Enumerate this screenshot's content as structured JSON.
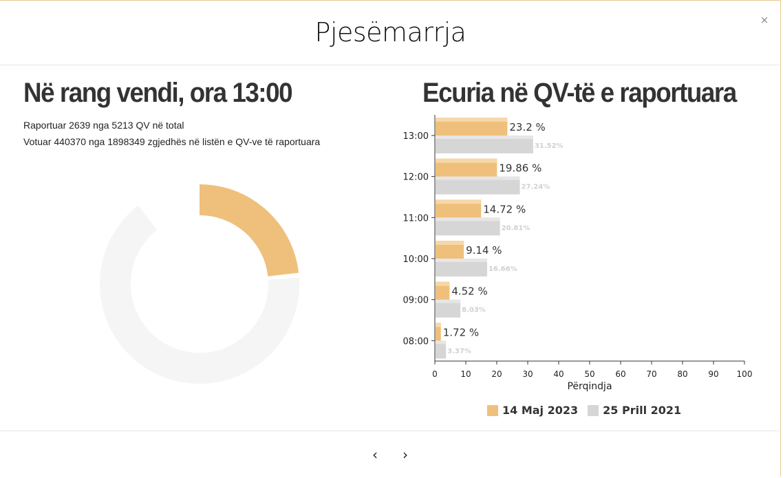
{
  "modal": {
    "title": "Pjesëmarrja",
    "close_label": "×",
    "prev_label": "‹",
    "next_label": "›"
  },
  "left": {
    "title": "Në rang vendi, ora 13:00",
    "reported_line": "Raportuar 2639 nga 5213 QV në total",
    "voted_line": "Votuar 440370 nga 1898349 zgjedhës në listën e QV-ve të raportuara"
  },
  "right": {
    "title": "Ecuria në QV-të e raportuara"
  },
  "colors": {
    "current": "#efc07c",
    "previous": "#d6d6d6",
    "donut_track": "#f6f5f5",
    "text": "#333333"
  },
  "chart_data": [
    {
      "type": "pie",
      "variant": "donut",
      "values": [
        23.2
      ],
      "max": 100,
      "start_angle_deg": 0,
      "title": ""
    },
    {
      "type": "bar",
      "orientation": "horizontal",
      "categories": [
        "13:00",
        "12:00",
        "11:00",
        "10:00",
        "09:00",
        "08:00"
      ],
      "series": [
        {
          "name": "14 Maj 2023",
          "values": [
            23.2,
            19.86,
            14.72,
            9.14,
            4.52,
            1.72
          ],
          "labels": [
            "23.2 %",
            "19.86 %",
            "14.72 %",
            "9.14 %",
            "4.52 %",
            "1.72 %"
          ]
        },
        {
          "name": "25 Prill 2021",
          "values": [
            31.52,
            27.24,
            20.81,
            16.66,
            8.03,
            3.37
          ],
          "labels": [
            "31.52%",
            "27.24%",
            "20.81%",
            "16.66%",
            "8.03%",
            "3.37%"
          ]
        }
      ],
      "xlabel": "Përqindja",
      "ylabel": "",
      "xlim": [
        0,
        100
      ],
      "xticks": [
        0,
        10,
        20,
        30,
        40,
        50,
        60,
        70,
        80,
        90,
        100
      ],
      "grid": false,
      "legend": "bottom"
    }
  ]
}
